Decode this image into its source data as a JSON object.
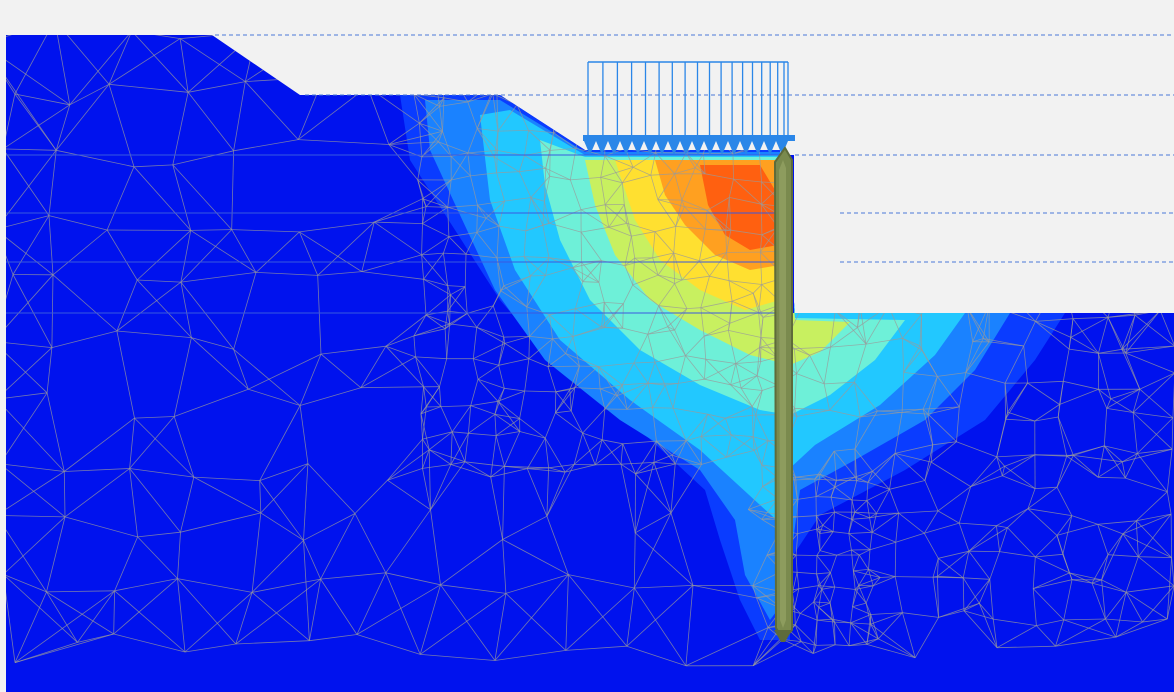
{
  "view": {
    "type": "finite-element-contour-plot",
    "background_color": "#f2f2f2",
    "soil_color": "#0012ee",
    "mesh_line_color": "#9a9a9a",
    "water_level_line_color": "#4a78d8",
    "load_color": "#2a86e8",
    "wall_color": "#7a8a4e",
    "contour_palette": [
      "#0a3cff",
      "#1a82ff",
      "#22c8ff",
      "#6ef0d8",
      "#c8f060",
      "#ffe030",
      "#ffa020",
      "#ff6010"
    ],
    "elements": {
      "distributed_load": {
        "icon": "distributed-load-arrows-icon"
      },
      "retaining_wall": {
        "icon": "sheet-pile-wall-icon"
      },
      "mesh": {
        "icon": "triangular-mesh"
      },
      "water_levels": {
        "count": 5,
        "style": "dashed"
      }
    }
  }
}
